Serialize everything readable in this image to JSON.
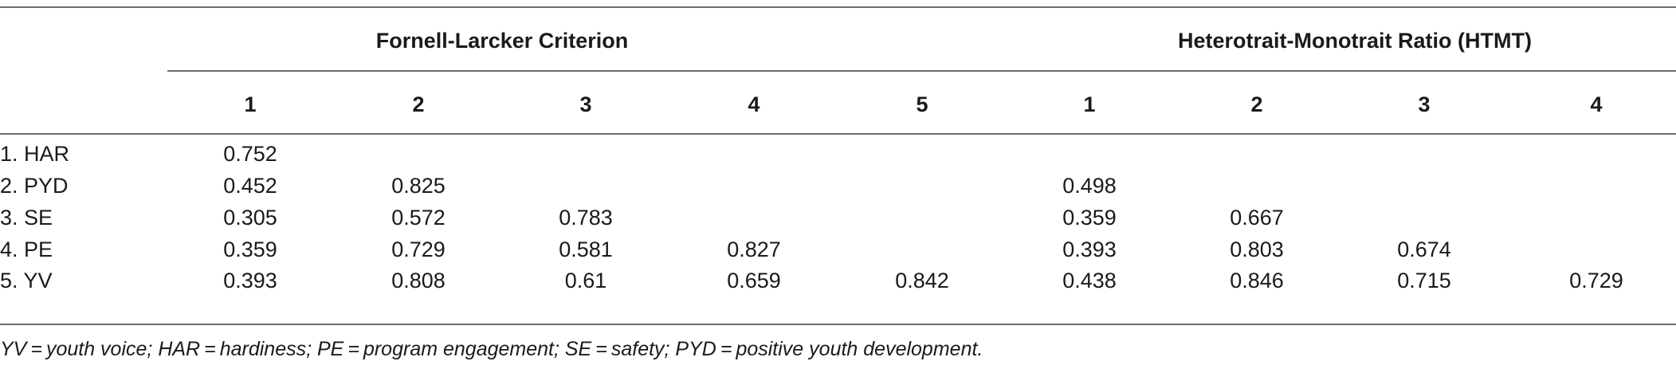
{
  "table": {
    "groups": [
      {
        "label": "Fornell-Larcker Criterion"
      },
      {
        "label": "Heterotrait-Monotrait Ratio (HTMT)"
      }
    ],
    "columns": [
      "1",
      "2",
      "3",
      "4",
      "5",
      "1",
      "2",
      "3",
      "4"
    ],
    "rows": [
      {
        "label": "1. HAR",
        "cells": [
          "0.752",
          "",
          "",
          "",
          "",
          "",
          "",
          "",
          ""
        ]
      },
      {
        "label": "2. PYD",
        "cells": [
          "0.452",
          "0.825",
          "",
          "",
          "",
          "0.498",
          "",
          "",
          ""
        ]
      },
      {
        "label": "3. SE",
        "cells": [
          "0.305",
          "0.572",
          "0.783",
          "",
          "",
          "0.359",
          "0.667",
          "",
          ""
        ]
      },
      {
        "label": "4. PE",
        "cells": [
          "0.359",
          "0.729",
          "0.581",
          "0.827",
          "",
          "0.393",
          "0.803",
          "0.674",
          ""
        ]
      },
      {
        "label": "5. YV",
        "cells": [
          "0.393",
          "0.808",
          "0.61",
          "0.659",
          "0.842",
          "0.438",
          "0.846",
          "0.715",
          "0.729"
        ]
      }
    ]
  },
  "footnote": "YV = youth voice; HAR = hardiness; PE = program engagement; SE = safety; PYD = positive youth development."
}
